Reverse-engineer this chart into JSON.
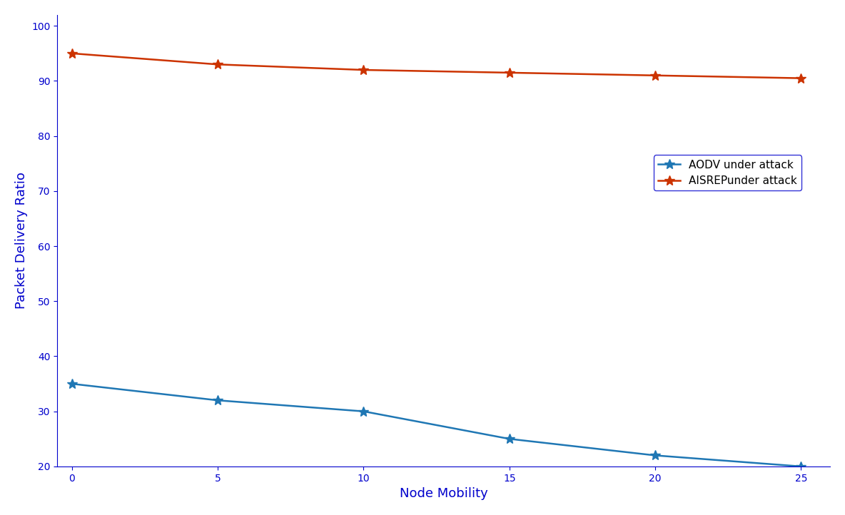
{
  "x": [
    0,
    5,
    10,
    15,
    20,
    25
  ],
  "aodv_y": [
    35,
    32,
    30,
    25,
    22,
    20
  ],
  "aisrep_y": [
    95,
    93,
    92,
    91.5,
    91,
    90.5
  ],
  "aodv_label": "AODV under attack",
  "aisrep_label": "AISREPunder attack",
  "xlabel": "Node Mobility",
  "ylabel": "Packet Delivery Ratio",
  "aodv_color": "#1f77b4",
  "aisrep_color": "#cc3300",
  "xlim": [
    -0.5,
    26
  ],
  "ylim": [
    20,
    102
  ],
  "yticks": [
    20,
    30,
    40,
    50,
    60,
    70,
    80,
    90,
    100
  ],
  "xticks": [
    0,
    5,
    10,
    15,
    20,
    25
  ],
  "axis_label_color": "#0000cc",
  "tick_label_color": "#0000cc",
  "spine_color": "#0000cc",
  "legend_edge_color": "#0000cc",
  "linewidth": 1.8,
  "markersize": 10
}
